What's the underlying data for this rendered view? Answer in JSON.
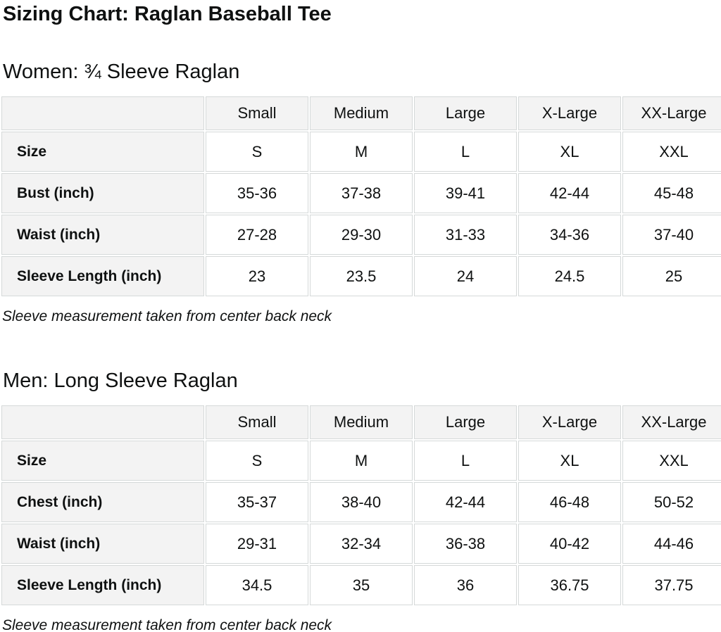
{
  "page": {
    "title": "Sizing Chart: Raglan Baseball Tee"
  },
  "colors": {
    "text": "#0F1111",
    "label_cell_bg": "#f3f3f3",
    "value_cell_bg": "#ffffff",
    "cell_border": "#d5d9d9"
  },
  "sections": [
    {
      "heading": "Women: ¾ Sleeve Raglan",
      "note": "Sleeve measurement taken from center back neck",
      "table": {
        "col_headers": [
          "Small",
          "Medium",
          "Large",
          "X-Large",
          "XX-Large"
        ],
        "rows": [
          {
            "label": "Size",
            "values": [
              "S",
              "M",
              "L",
              "XL",
              "XXL"
            ]
          },
          {
            "label": "Bust (inch)",
            "values": [
              "35-36",
              "37-38",
              "39-41",
              "42-44",
              "45-48"
            ]
          },
          {
            "label": "Waist (inch)",
            "values": [
              "27-28",
              "29-30",
              "31-33",
              "34-36",
              "37-40"
            ]
          },
          {
            "label": "Sleeve Length (inch)",
            "values": [
              "23",
              "23.5",
              "24",
              "24.5",
              "25"
            ]
          }
        ]
      }
    },
    {
      "heading": "Men: Long Sleeve Raglan",
      "note": "Sleeve measurement taken from center back neck",
      "table": {
        "col_headers": [
          "Small",
          "Medium",
          "Large",
          "X-Large",
          "XX-Large"
        ],
        "rows": [
          {
            "label": "Size",
            "values": [
              "S",
              "M",
              "L",
              "XL",
              "XXL"
            ]
          },
          {
            "label": "Chest (inch)",
            "values": [
              "35-37",
              "38-40",
              "42-44",
              "46-48",
              "50-52"
            ]
          },
          {
            "label": "Waist (inch)",
            "values": [
              "29-31",
              "32-34",
              "36-38",
              "40-42",
              "44-46"
            ]
          },
          {
            "label": "Sleeve Length (inch)",
            "values": [
              "34.5",
              "35",
              "36",
              "36.75",
              "37.75"
            ]
          }
        ]
      }
    }
  ]
}
